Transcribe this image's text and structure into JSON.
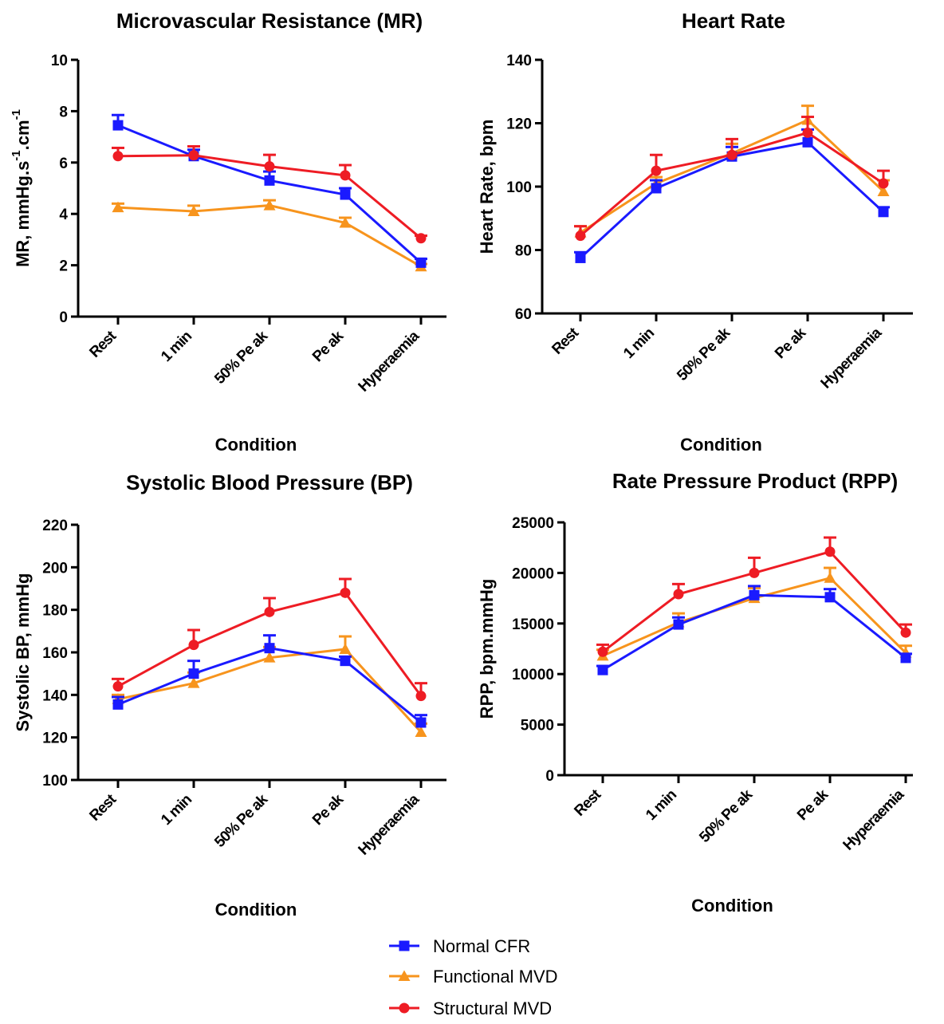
{
  "series_styles": [
    {
      "name": "Normal CFR",
      "color": "#1a1aff",
      "marker": "square"
    },
    {
      "name": "Functional MVD",
      "color": "#f7941d",
      "marker": "triangle"
    },
    {
      "name": "Structural MVD",
      "color": "#ee1c24",
      "marker": "circle"
    }
  ],
  "chart_data": [
    {
      "type": "line",
      "title": "Microvascular Resistance (MR)",
      "xlabel": "Condition",
      "ylabel": "MR, mmHg.s",
      "ylabel_sup1": "-1",
      "ylabel_mid": ".cm",
      "ylabel_sup2": "-1",
      "categories": [
        "Rest",
        "1 min",
        "50% Pe ak",
        "Pe ak",
        "Hyperaemia"
      ],
      "ylim": [
        0,
        10
      ],
      "yticks": [
        0,
        2,
        4,
        6,
        8,
        10
      ],
      "series": [
        {
          "name": "Normal CFR",
          "values": [
            7.45,
            6.25,
            5.3,
            4.75,
            2.1
          ],
          "err": [
            0.4,
            0.25,
            0.35,
            0.25,
            0.15
          ]
        },
        {
          "name": "Functional MVD",
          "values": [
            4.25,
            4.1,
            4.33,
            3.65,
            1.95
          ],
          "err": [
            0.15,
            0.22,
            0.2,
            0.2,
            0.1
          ]
        },
        {
          "name": "Structural MVD",
          "values": [
            6.25,
            6.28,
            5.85,
            5.5,
            3.05
          ],
          "err": [
            0.32,
            0.35,
            0.45,
            0.4,
            0.1
          ]
        }
      ]
    },
    {
      "type": "line",
      "title": "Heart Rate",
      "xlabel": "Condition",
      "ylabel": "Heart Rate, bpm",
      "categories": [
        "Rest",
        "1 min",
        "50% Pe ak",
        "Pe ak",
        "Hyperaemia"
      ],
      "ylim": [
        60,
        140
      ],
      "yticks": [
        60,
        80,
        100,
        120,
        140
      ],
      "series": [
        {
          "name": "Normal CFR",
          "values": [
            77.5,
            99.5,
            109.5,
            114,
            92
          ],
          "err": [
            1.8,
            2.5,
            3,
            4,
            1.5
          ]
        },
        {
          "name": "Functional MVD",
          "values": [
            85.5,
            101,
            110.5,
            121,
            98.5
          ],
          "err": [
            2,
            2,
            3,
            4.5,
            3.5
          ]
        },
        {
          "name": "Structural MVD",
          "values": [
            84.5,
            105,
            110,
            117,
            101
          ],
          "err": [
            3,
            5,
            5,
            5,
            4
          ]
        }
      ]
    },
    {
      "type": "line",
      "title": "Systolic Blood Pressure (BP)",
      "xlabel": "Condition",
      "ylabel": "Systolic BP, mmHg",
      "categories": [
        "Rest",
        "1 min",
        "50% Pe ak",
        "Pe ak",
        "Hyperaemia"
      ],
      "ylim": [
        100,
        220
      ],
      "yticks": [
        100,
        120,
        140,
        160,
        180,
        200,
        220
      ],
      "series": [
        {
          "name": "Normal CFR",
          "values": [
            135.5,
            150,
            162,
            156,
            127
          ],
          "err": [
            3.5,
            6,
            6,
            2,
            3.5
          ]
        },
        {
          "name": "Functional MVD",
          "values": [
            138,
            145.5,
            157.5,
            161.5,
            122.5
          ],
          "err": [
            2,
            5,
            5,
            6,
            4
          ]
        },
        {
          "name": "Structural MVD",
          "values": [
            144,
            163.5,
            179,
            188,
            139.5
          ],
          "err": [
            3.5,
            7,
            6.5,
            6.5,
            6
          ]
        }
      ]
    },
    {
      "type": "line",
      "title": "Rate Pressure Product (RPP)",
      "xlabel": "Condition",
      "ylabel": "RPP, bpm.mmHg",
      "categories": [
        "Rest",
        "1 min",
        "50% Pe ak",
        "Pe ak",
        "Hyperaemia"
      ],
      "ylim": [
        0,
        25000
      ],
      "yticks": [
        0,
        5000,
        10000,
        15000,
        20000,
        25000
      ],
      "series": [
        {
          "name": "Normal CFR",
          "values": [
            10400,
            14900,
            17800,
            17600,
            11600
          ],
          "err": [
            400,
            700,
            900,
            800,
            400
          ]
        },
        {
          "name": "Functional MVD",
          "values": [
            11800,
            15100,
            17500,
            19500,
            12100
          ],
          "err": [
            600,
            900,
            1000,
            1000,
            700
          ]
        },
        {
          "name": "Structural MVD",
          "values": [
            12200,
            17900,
            20000,
            22100,
            14100
          ],
          "err": [
            700,
            1000,
            1500,
            1400,
            800
          ]
        }
      ]
    }
  ]
}
